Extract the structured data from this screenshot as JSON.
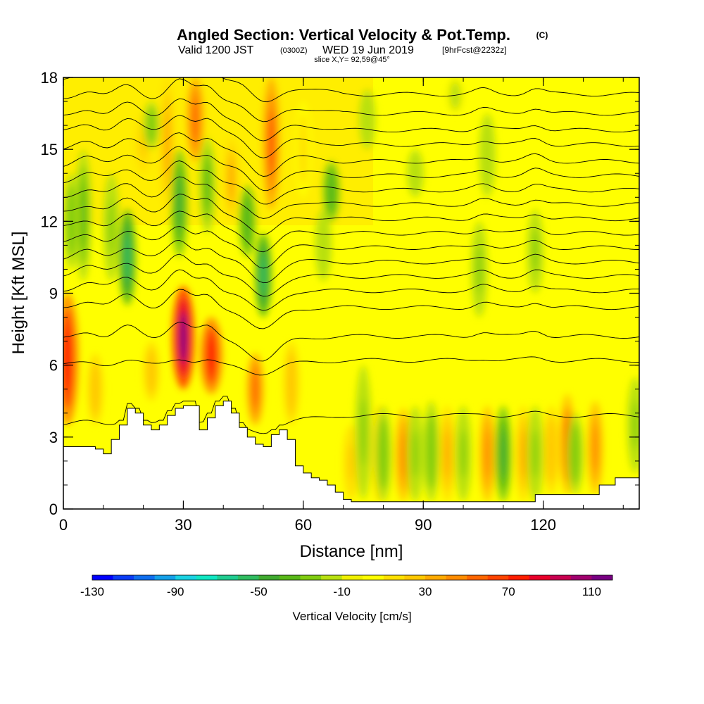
{
  "header": {
    "title": "Angled Section: Vertical Velocity & Pot.Temp.",
    "title_units": "(C)",
    "valid_prefix": "Valid 1200 JST",
    "valid_z": "(0300Z)",
    "valid_date": "WED 19 Jun 2019",
    "forecast": "[9hrFcst@2232z]",
    "slice": "slice X,Y= 92,59@45°"
  },
  "chart_data": {
    "type": "heatmap",
    "xlabel": "Distance [nm]",
    "ylabel": "Height [Kft MSL]",
    "xlim": [
      0,
      144
    ],
    "ylim": [
      0,
      18
    ],
    "x_ticks": [
      0,
      30,
      60,
      90,
      120
    ],
    "y_ticks": [
      0,
      3,
      6,
      9,
      12,
      15,
      18
    ],
    "x_minor_step": 10,
    "y_minor_step": 1,
    "colorbar": {
      "label": "Vertical Velocity [cm/s]",
      "min": -130,
      "max": 120,
      "step": 10,
      "tick_values": [
        -130,
        -90,
        -50,
        -10,
        30,
        70,
        110
      ],
      "colors": [
        "#0000ff",
        "#0a3cf5",
        "#0f6eee",
        "#14a0e8",
        "#1ad2e2",
        "#10e6c2",
        "#20cc90",
        "#30bc60",
        "#40aa30",
        "#58b818",
        "#80cc10",
        "#b8e010",
        "#f0f000",
        "#ffff00",
        "#ffe000",
        "#ffc800",
        "#ffaa00",
        "#ff8c00",
        "#ff6600",
        "#ff4400",
        "#ff1e00",
        "#e8002a",
        "#c80050",
        "#a0006e",
        "#780082"
      ]
    },
    "terrain_profile": {
      "x": [
        0,
        5,
        8,
        10,
        12,
        14,
        16,
        18,
        20,
        22,
        24,
        26,
        28,
        30,
        32,
        34,
        36,
        38,
        40,
        42,
        44,
        46,
        48,
        50,
        52,
        54,
        56,
        58,
        60,
        62,
        64,
        66,
        68,
        70,
        72,
        76,
        80,
        85,
        90,
        95,
        100,
        105,
        110,
        114,
        118,
        122,
        126,
        130,
        134,
        138,
        144
      ],
      "y": [
        2.6,
        2.6,
        2.5,
        2.3,
        2.9,
        3.5,
        4.2,
        4.0,
        3.5,
        3.3,
        3.5,
        3.9,
        4.2,
        4.3,
        4.3,
        3.3,
        3.8,
        4.3,
        4.5,
        4.0,
        3.4,
        3.0,
        2.7,
        2.6,
        3.1,
        3.3,
        2.9,
        1.8,
        1.5,
        1.3,
        1.2,
        1.0,
        0.7,
        0.4,
        0.3,
        0.3,
        0.3,
        0.3,
        0.3,
        0.3,
        0.3,
        0.3,
        0.3,
        0.3,
        0.6,
        0.6,
        0.6,
        0.6,
        1.0,
        1.3,
        1.3
      ]
    },
    "theta_contour_levels": [
      18,
      20,
      22,
      24,
      26,
      28,
      30,
      32,
      34,
      36,
      38,
      40,
      42,
      44,
      46,
      48,
      50,
      52
    ],
    "theta_base_heights": [
      3.9,
      6.2,
      7.2,
      8.4,
      9.1,
      9.7,
      10.3,
      10.9,
      11.5,
      12.1,
      12.7,
      13.3,
      13.9,
      14.5,
      15.2,
      15.8,
      16.5,
      17.3
    ],
    "updraft_cores": [
      {
        "x": 1,
        "ytop": 9.0,
        "ybot": 3.5,
        "value": 75
      },
      {
        "x": 30,
        "ytop": 9.3,
        "ybot": 5.0,
        "value": 110
      },
      {
        "x": 37,
        "ytop": 8.0,
        "ybot": 4.8,
        "value": 75
      },
      {
        "x": 33,
        "ytop": 18.0,
        "ybot": 14.5,
        "value": 55
      },
      {
        "x": 52,
        "ytop": 18.0,
        "ybot": 12.5,
        "value": 60
      },
      {
        "x": 48,
        "ytop": 6.5,
        "ybot": 3.5,
        "value": 55
      },
      {
        "x": 26,
        "ytop": 18.0,
        "ybot": 12.5,
        "value": 30
      },
      {
        "x": 42,
        "ytop": 15.5,
        "ybot": 12.0,
        "value": 30
      },
      {
        "x": 8,
        "ytop": 6.5,
        "ybot": 3.5,
        "value": 25
      },
      {
        "x": 22,
        "ytop": 7.0,
        "ybot": 4.5,
        "value": 25
      },
      {
        "x": 57,
        "ytop": 7.0,
        "ybot": 3.5,
        "value": 25
      },
      {
        "x": 126,
        "ytop": 4.8,
        "ybot": 0.6,
        "value": 50
      },
      {
        "x": 133,
        "ytop": 4.5,
        "ybot": 0.6,
        "value": 45
      },
      {
        "x": 85,
        "ytop": 4.2,
        "ybot": 0.3,
        "value": 40
      },
      {
        "x": 79,
        "ytop": 4.3,
        "ybot": 0.3,
        "value": 35
      },
      {
        "x": 96,
        "ytop": 4.3,
        "ybot": 0.3,
        "value": 35
      },
      {
        "x": 106,
        "ytop": 4.3,
        "ybot": 0.3,
        "value": 40
      },
      {
        "x": 115,
        "ytop": 4.3,
        "ybot": 0.3,
        "value": 30
      },
      {
        "x": 122,
        "ytop": 4.3,
        "ybot": 0.6,
        "value": 25
      },
      {
        "x": 72,
        "ytop": 3.5,
        "ybot": 0.4,
        "value": 20
      },
      {
        "x": 20,
        "ytop": 16.5,
        "ybot": 14.0,
        "value": 20
      },
      {
        "x": 60,
        "ytop": 17.0,
        "ybot": 13.0,
        "value": 15
      }
    ],
    "downdraft_cores": [
      {
        "x": 16,
        "ytop": 12.5,
        "ybot": 8.5,
        "value": -55
      },
      {
        "x": 29,
        "ytop": 15.0,
        "ybot": 10.5,
        "value": -50
      },
      {
        "x": 50,
        "ytop": 11.5,
        "ybot": 8.0,
        "value": -60
      },
      {
        "x": 46,
        "ytop": 13.5,
        "ybot": 10.5,
        "value": -40
      },
      {
        "x": 36,
        "ytop": 15.5,
        "ybot": 11.5,
        "value": -35
      },
      {
        "x": 5,
        "ytop": 15.0,
        "ybot": 9.5,
        "value": -35
      },
      {
        "x": 2,
        "ytop": 14.0,
        "ybot": 10.0,
        "value": -30
      },
      {
        "x": 12,
        "ytop": 14.0,
        "ybot": 9.5,
        "value": -25
      },
      {
        "x": 67,
        "ytop": 14.5,
        "ybot": 12.0,
        "value": -40
      },
      {
        "x": 65,
        "ytop": 12.5,
        "ybot": 9.5,
        "value": -20
      },
      {
        "x": 75,
        "ytop": 6.0,
        "ybot": 0.4,
        "value": -25
      },
      {
        "x": 80,
        "ytop": 4.3,
        "ybot": 0.3,
        "value": -30
      },
      {
        "x": 88,
        "ytop": 4.3,
        "ybot": 0.3,
        "value": -25
      },
      {
        "x": 92,
        "ytop": 4.5,
        "ybot": 0.3,
        "value": -30
      },
      {
        "x": 100,
        "ytop": 4.3,
        "ybot": 0.3,
        "value": -25
      },
      {
        "x": 110,
        "ytop": 4.3,
        "ybot": 0.3,
        "value": -45
      },
      {
        "x": 118,
        "ytop": 4.3,
        "ybot": 0.3,
        "value": -25
      },
      {
        "x": 128,
        "ytop": 4.0,
        "ybot": 0.6,
        "value": -30
      },
      {
        "x": 143,
        "ytop": 5.5,
        "ybot": 1.5,
        "value": -25
      },
      {
        "x": 104,
        "ytop": 12.0,
        "ybot": 8.0,
        "value": -25
      },
      {
        "x": 118,
        "ytop": 12.5,
        "ybot": 9.0,
        "value": -25
      },
      {
        "x": 106,
        "ytop": 16.5,
        "ybot": 13.0,
        "value": -20
      },
      {
        "x": 88,
        "ytop": 15.0,
        "ybot": 13.0,
        "value": -20
      },
      {
        "x": 76,
        "ytop": 17.5,
        "ybot": 15.0,
        "value": -20
      },
      {
        "x": 98,
        "ytop": 18.0,
        "ybot": 16.5,
        "value": -15
      },
      {
        "x": 22,
        "ytop": 17.0,
        "ybot": 15.0,
        "value": -30
      }
    ]
  }
}
